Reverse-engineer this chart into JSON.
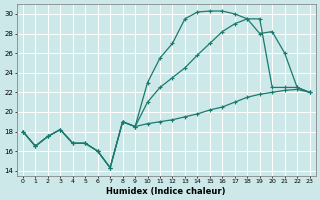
{
  "xlabel": "Humidex (Indice chaleur)",
  "bg_color": "#cce8e8",
  "grid_color": "#ffffff",
  "line_color": "#1a7a6e",
  "xlim": [
    -0.5,
    23.5
  ],
  "ylim": [
    13.5,
    31.0
  ],
  "yticks": [
    14,
    16,
    18,
    20,
    22,
    24,
    26,
    28,
    30
  ],
  "xticks": [
    0,
    1,
    2,
    3,
    4,
    5,
    6,
    7,
    8,
    9,
    10,
    11,
    12,
    13,
    14,
    15,
    16,
    17,
    18,
    19,
    20,
    21,
    22,
    23
  ],
  "line1_x": [
    0,
    1,
    2,
    3,
    4,
    5,
    6,
    7,
    8,
    9,
    10,
    11,
    12,
    13,
    14,
    15,
    16,
    17,
    18,
    19,
    20,
    21,
    22,
    23
  ],
  "line1_y": [
    18.0,
    16.5,
    17.5,
    18.2,
    16.8,
    16.8,
    16.0,
    14.3,
    19.0,
    18.5,
    23.0,
    25.5,
    27.0,
    29.5,
    30.2,
    30.3,
    30.3,
    30.0,
    29.5,
    29.5,
    22.5,
    22.5,
    22.5,
    22.0
  ],
  "line2_x": [
    0,
    1,
    2,
    3,
    4,
    5,
    6,
    7,
    8,
    9,
    10,
    11,
    12,
    13,
    14,
    15,
    16,
    17,
    18,
    19,
    20,
    21,
    22,
    23
  ],
  "line2_y": [
    18.0,
    16.5,
    17.5,
    18.2,
    16.8,
    16.8,
    16.0,
    14.3,
    19.0,
    18.5,
    21.0,
    22.5,
    23.5,
    24.5,
    25.8,
    27.0,
    28.2,
    29.0,
    29.5,
    28.0,
    28.2,
    26.0,
    22.5,
    22.0
  ],
  "line3_x": [
    0,
    1,
    2,
    3,
    4,
    5,
    6,
    7,
    8,
    9,
    10,
    11,
    12,
    13,
    14,
    15,
    16,
    17,
    18,
    19,
    20,
    21,
    22,
    23
  ],
  "line3_y": [
    18.0,
    16.5,
    17.5,
    18.2,
    16.8,
    16.8,
    16.0,
    14.3,
    19.0,
    18.5,
    18.8,
    19.0,
    19.2,
    19.5,
    19.8,
    20.2,
    20.5,
    21.0,
    21.5,
    21.8,
    22.0,
    22.2,
    22.3,
    22.0
  ]
}
